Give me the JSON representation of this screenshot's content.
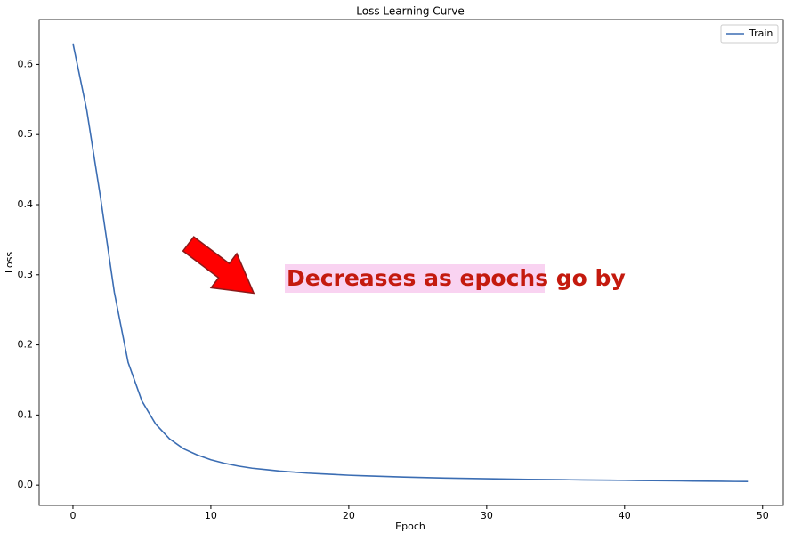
{
  "chart_data": {
    "type": "line",
    "title": "Loss Learning Curve",
    "x_label": "Epoch",
    "y_label": "Loss",
    "x": [
      0,
      1,
      2,
      3,
      4,
      5,
      6,
      7,
      8,
      9,
      10,
      11,
      12,
      13,
      14,
      15,
      16,
      17,
      18,
      19,
      20,
      21,
      22,
      23,
      24,
      25,
      26,
      27,
      28,
      29,
      30,
      31,
      32,
      33,
      34,
      35,
      36,
      37,
      38,
      39,
      40,
      41,
      42,
      43,
      44,
      45,
      46,
      47,
      48,
      49
    ],
    "series": [
      {
        "name": "Train",
        "color": "#3b6db3",
        "values": [
          0.63,
          0.535,
          0.41,
          0.275,
          0.175,
          0.12,
          0.087,
          0.066,
          0.052,
          0.043,
          0.036,
          0.031,
          0.027,
          0.024,
          0.022,
          0.02,
          0.0185,
          0.017,
          0.016,
          0.015,
          0.014,
          0.0133,
          0.0126,
          0.012,
          0.0114,
          0.0109,
          0.0104,
          0.01,
          0.0096,
          0.0093,
          0.009,
          0.0087,
          0.0084,
          0.0081,
          0.0079,
          0.0077,
          0.0075,
          0.0073,
          0.0071,
          0.0069,
          0.0067,
          0.0065,
          0.0063,
          0.0061,
          0.0059,
          0.0057,
          0.0055,
          0.0053,
          0.0051,
          0.005
        ]
      }
    ],
    "xlim": [
      -2.45,
      51.5
    ],
    "ylim": [
      -0.029,
      0.664
    ],
    "xticks": [
      0,
      10,
      20,
      30,
      40,
      50
    ],
    "yticks": [
      {
        "value": 0,
        "label": "0.0"
      },
      0.1,
      0.2,
      0.3,
      0.4,
      0.5,
      0.6
    ],
    "legend": "upper right",
    "annotation": "Decreases as epochs go by"
  }
}
